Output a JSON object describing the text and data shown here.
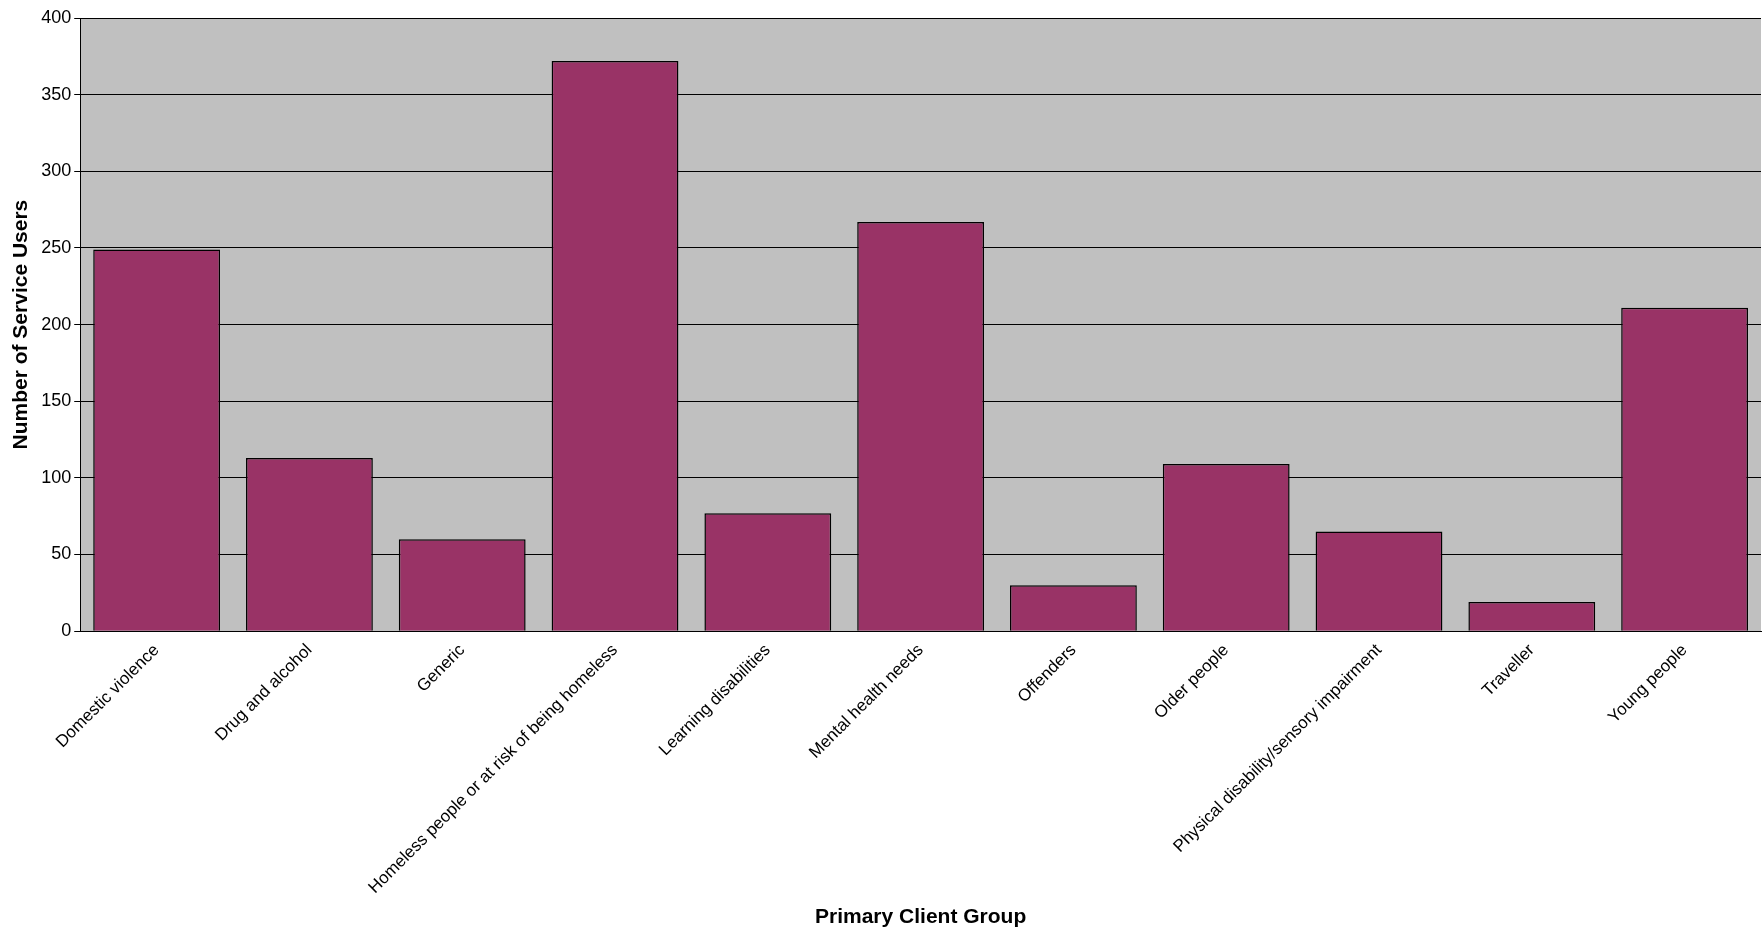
{
  "chart_data": {
    "type": "bar",
    "xlabel": "Primary Client Group",
    "ylabel": "Number of Service Users",
    "categories": [
      "Domestic violence",
      "Drug and alcohol",
      "Generic",
      "Homeless people or at risk of being homeless",
      "Learning disabilities",
      "Mental health needs",
      "Offenders",
      "Older people",
      "Physical disability/sensory impairment",
      "Traveller",
      "Young people"
    ],
    "values": [
      249,
      113,
      60,
      372,
      77,
      267,
      30,
      109,
      65,
      19,
      211
    ],
    "color": "#993366",
    "ylim": [
      0,
      400
    ],
    "yticks": [
      0,
      50,
      100,
      150,
      200,
      250,
      300,
      350,
      400
    ],
    "grid": "y",
    "legend": false
  }
}
